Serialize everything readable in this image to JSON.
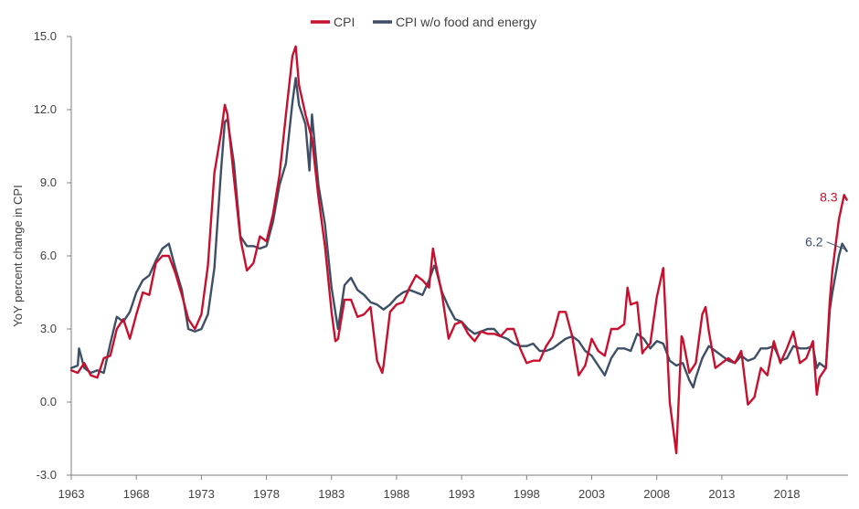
{
  "chart_data": {
    "type": "line",
    "title": "",
    "xlabel": "",
    "ylabel": "YoY percent change in CPI",
    "xlim": [
      1963,
      2022.7
    ],
    "ylim": [
      -3.0,
      15.0
    ],
    "x_ticks": [
      "1963",
      "1968",
      "1973",
      "1978",
      "1983",
      "1988",
      "1993",
      "1998",
      "2003",
      "2008",
      "2013",
      "2018"
    ],
    "y_ticks": [
      "-3.0",
      "0.0",
      "3.0",
      "6.0",
      "9.0",
      "12.0",
      "15.0"
    ],
    "grid": false,
    "legend_position": "top-center",
    "series": [
      {
        "name": "CPI",
        "color": "#c8102e",
        "end_label": "8.3",
        "points": [
          [
            1963.0,
            1.3
          ],
          [
            1963.5,
            1.2
          ],
          [
            1964.0,
            1.6
          ],
          [
            1964.5,
            1.1
          ],
          [
            1965.0,
            1.0
          ],
          [
            1965.5,
            1.8
          ],
          [
            1966.0,
            1.9
          ],
          [
            1966.5,
            3.0
          ],
          [
            1967.0,
            3.4
          ],
          [
            1967.5,
            2.6
          ],
          [
            1968.0,
            3.6
          ],
          [
            1968.5,
            4.5
          ],
          [
            1969.0,
            4.4
          ],
          [
            1969.5,
            5.7
          ],
          [
            1970.0,
            6.0
          ],
          [
            1970.5,
            6.0
          ],
          [
            1971.0,
            5.3
          ],
          [
            1971.5,
            4.4
          ],
          [
            1972.0,
            3.4
          ],
          [
            1972.5,
            3.0
          ],
          [
            1973.0,
            3.6
          ],
          [
            1973.5,
            5.6
          ],
          [
            1974.0,
            9.4
          ],
          [
            1974.5,
            11.0
          ],
          [
            1974.8,
            12.2
          ],
          [
            1975.0,
            11.8
          ],
          [
            1975.5,
            9.2
          ],
          [
            1976.0,
            6.7
          ],
          [
            1976.5,
            5.4
          ],
          [
            1977.0,
            5.7
          ],
          [
            1977.5,
            6.8
          ],
          [
            1978.0,
            6.6
          ],
          [
            1978.5,
            7.7
          ],
          [
            1979.0,
            9.3
          ],
          [
            1979.5,
            11.8
          ],
          [
            1980.0,
            14.2
          ],
          [
            1980.25,
            14.6
          ],
          [
            1980.5,
            13.0
          ],
          [
            1981.0,
            11.8
          ],
          [
            1981.5,
            10.8
          ],
          [
            1982.0,
            8.4
          ],
          [
            1982.5,
            6.4
          ],
          [
            1983.0,
            3.7
          ],
          [
            1983.3,
            2.5
          ],
          [
            1983.5,
            2.6
          ],
          [
            1984.0,
            4.2
          ],
          [
            1984.5,
            4.2
          ],
          [
            1985.0,
            3.5
          ],
          [
            1985.5,
            3.6
          ],
          [
            1986.0,
            3.9
          ],
          [
            1986.5,
            1.7
          ],
          [
            1986.9,
            1.2
          ],
          [
            1987.0,
            1.5
          ],
          [
            1987.5,
            3.7
          ],
          [
            1988.0,
            4.0
          ],
          [
            1988.5,
            4.1
          ],
          [
            1989.0,
            4.7
          ],
          [
            1989.5,
            5.2
          ],
          [
            1990.0,
            5.0
          ],
          [
            1990.5,
            4.7
          ],
          [
            1990.8,
            6.3
          ],
          [
            1991.0,
            5.7
          ],
          [
            1991.5,
            4.4
          ],
          [
            1992.0,
            2.6
          ],
          [
            1992.5,
            3.2
          ],
          [
            1993.0,
            3.3
          ],
          [
            1993.5,
            2.8
          ],
          [
            1994.0,
            2.5
          ],
          [
            1994.5,
            2.9
          ],
          [
            1995.0,
            2.8
          ],
          [
            1995.5,
            2.8
          ],
          [
            1996.0,
            2.7
          ],
          [
            1996.5,
            3.0
          ],
          [
            1997.0,
            3.0
          ],
          [
            1997.5,
            2.2
          ],
          [
            1998.0,
            1.6
          ],
          [
            1998.5,
            1.7
          ],
          [
            1999.0,
            1.7
          ],
          [
            1999.5,
            2.3
          ],
          [
            2000.0,
            2.7
          ],
          [
            2000.5,
            3.7
          ],
          [
            2001.0,
            3.7
          ],
          [
            2001.5,
            2.7
          ],
          [
            2002.0,
            1.1
          ],
          [
            2002.5,
            1.5
          ],
          [
            2003.0,
            2.6
          ],
          [
            2003.5,
            2.1
          ],
          [
            2004.0,
            1.9
          ],
          [
            2004.5,
            3.0
          ],
          [
            2005.0,
            3.0
          ],
          [
            2005.5,
            3.2
          ],
          [
            2005.75,
            4.7
          ],
          [
            2006.0,
            4.0
          ],
          [
            2006.5,
            4.1
          ],
          [
            2006.9,
            2.0
          ],
          [
            2007.0,
            2.1
          ],
          [
            2007.5,
            2.4
          ],
          [
            2008.0,
            4.3
          ],
          [
            2008.5,
            5.5
          ],
          [
            2008.9,
            1.1
          ],
          [
            2009.0,
            0.0
          ],
          [
            2009.5,
            -2.1
          ],
          [
            2009.9,
            2.7
          ],
          [
            2010.0,
            2.6
          ],
          [
            2010.5,
            1.2
          ],
          [
            2011.0,
            1.6
          ],
          [
            2011.5,
            3.6
          ],
          [
            2011.75,
            3.9
          ],
          [
            2012.0,
            2.9
          ],
          [
            2012.5,
            1.4
          ],
          [
            2013.0,
            1.6
          ],
          [
            2013.5,
            1.8
          ],
          [
            2014.0,
            1.6
          ],
          [
            2014.5,
            2.1
          ],
          [
            2015.0,
            -0.1
          ],
          [
            2015.5,
            0.2
          ],
          [
            2016.0,
            1.4
          ],
          [
            2016.5,
            1.1
          ],
          [
            2017.0,
            2.5
          ],
          [
            2017.5,
            1.6
          ],
          [
            2018.0,
            2.2
          ],
          [
            2018.5,
            2.9
          ],
          [
            2019.0,
            1.6
          ],
          [
            2019.5,
            1.8
          ],
          [
            2020.0,
            2.5
          ],
          [
            2020.3,
            0.3
          ],
          [
            2020.5,
            1.0
          ],
          [
            2021.0,
            1.4
          ],
          [
            2021.3,
            4.2
          ],
          [
            2021.5,
            5.4
          ],
          [
            2022.0,
            7.5
          ],
          [
            2022.4,
            8.5
          ],
          [
            2022.6,
            8.3
          ]
        ]
      },
      {
        "name": "CPI w/o food and energy",
        "color": "#3d4f66",
        "end_label": "6.2",
        "points": [
          [
            1963.0,
            1.4
          ],
          [
            1963.5,
            1.5
          ],
          [
            1963.6,
            2.2
          ],
          [
            1964.0,
            1.4
          ],
          [
            1964.5,
            1.2
          ],
          [
            1965.0,
            1.3
          ],
          [
            1965.5,
            1.2
          ],
          [
            1966.0,
            2.4
          ],
          [
            1966.5,
            3.5
          ],
          [
            1967.0,
            3.3
          ],
          [
            1967.5,
            3.7
          ],
          [
            1968.0,
            4.5
          ],
          [
            1968.5,
            5.0
          ],
          [
            1969.0,
            5.2
          ],
          [
            1969.5,
            5.8
          ],
          [
            1970.0,
            6.3
          ],
          [
            1970.5,
            6.5
          ],
          [
            1971.0,
            5.5
          ],
          [
            1971.5,
            4.6
          ],
          [
            1972.0,
            3.0
          ],
          [
            1972.5,
            2.9
          ],
          [
            1973.0,
            3.0
          ],
          [
            1973.5,
            3.6
          ],
          [
            1974.0,
            5.5
          ],
          [
            1974.5,
            9.4
          ],
          [
            1974.8,
            11.5
          ],
          [
            1975.0,
            11.6
          ],
          [
            1975.5,
            9.8
          ],
          [
            1976.0,
            6.8
          ],
          [
            1976.5,
            6.4
          ],
          [
            1977.0,
            6.4
          ],
          [
            1977.5,
            6.3
          ],
          [
            1978.0,
            6.4
          ],
          [
            1978.5,
            7.4
          ],
          [
            1979.0,
            8.9
          ],
          [
            1979.5,
            9.8
          ],
          [
            1980.0,
            12.3
          ],
          [
            1980.25,
            13.3
          ],
          [
            1980.5,
            12.2
          ],
          [
            1981.0,
            11.4
          ],
          [
            1981.3,
            9.5
          ],
          [
            1981.5,
            11.8
          ],
          [
            1982.0,
            8.9
          ],
          [
            1982.5,
            7.3
          ],
          [
            1983.0,
            4.7
          ],
          [
            1983.5,
            3.0
          ],
          [
            1984.0,
            4.8
          ],
          [
            1984.5,
            5.1
          ],
          [
            1985.0,
            4.6
          ],
          [
            1985.5,
            4.4
          ],
          [
            1986.0,
            4.1
          ],
          [
            1986.5,
            4.0
          ],
          [
            1987.0,
            3.8
          ],
          [
            1987.5,
            4.0
          ],
          [
            1988.0,
            4.3
          ],
          [
            1988.5,
            4.5
          ],
          [
            1989.0,
            4.6
          ],
          [
            1989.5,
            4.5
          ],
          [
            1990.0,
            4.4
          ],
          [
            1990.5,
            5.0
          ],
          [
            1990.9,
            5.6
          ],
          [
            1991.0,
            5.5
          ],
          [
            1991.5,
            4.5
          ],
          [
            1992.0,
            3.9
          ],
          [
            1992.5,
            3.4
          ],
          [
            1993.0,
            3.3
          ],
          [
            1993.5,
            3.0
          ],
          [
            1994.0,
            2.8
          ],
          [
            1994.5,
            2.9
          ],
          [
            1995.0,
            3.0
          ],
          [
            1995.5,
            3.0
          ],
          [
            1996.0,
            2.7
          ],
          [
            1996.5,
            2.6
          ],
          [
            1997.0,
            2.4
          ],
          [
            1997.5,
            2.3
          ],
          [
            1998.0,
            2.3
          ],
          [
            1998.5,
            2.4
          ],
          [
            1999.0,
            2.1
          ],
          [
            1999.5,
            2.1
          ],
          [
            2000.0,
            2.2
          ],
          [
            2000.5,
            2.4
          ],
          [
            2001.0,
            2.6
          ],
          [
            2001.5,
            2.7
          ],
          [
            2002.0,
            2.5
          ],
          [
            2002.5,
            2.1
          ],
          [
            2003.0,
            1.9
          ],
          [
            2003.5,
            1.5
          ],
          [
            2004.0,
            1.1
          ],
          [
            2004.5,
            1.8
          ],
          [
            2005.0,
            2.2
          ],
          [
            2005.5,
            2.2
          ],
          [
            2006.0,
            2.1
          ],
          [
            2006.5,
            2.8
          ],
          [
            2007.0,
            2.6
          ],
          [
            2007.5,
            2.2
          ],
          [
            2008.0,
            2.5
          ],
          [
            2008.5,
            2.4
          ],
          [
            2009.0,
            1.7
          ],
          [
            2009.5,
            1.5
          ],
          [
            2010.0,
            1.6
          ],
          [
            2010.5,
            0.9
          ],
          [
            2010.8,
            0.6
          ],
          [
            2011.0,
            1.0
          ],
          [
            2011.5,
            1.8
          ],
          [
            2012.0,
            2.3
          ],
          [
            2012.5,
            2.1
          ],
          [
            2013.0,
            1.9
          ],
          [
            2013.5,
            1.7
          ],
          [
            2014.0,
            1.6
          ],
          [
            2014.5,
            1.9
          ],
          [
            2015.0,
            1.7
          ],
          [
            2015.5,
            1.8
          ],
          [
            2016.0,
            2.2
          ],
          [
            2016.5,
            2.2
          ],
          [
            2017.0,
            2.3
          ],
          [
            2017.5,
            1.7
          ],
          [
            2018.0,
            1.8
          ],
          [
            2018.5,
            2.3
          ],
          [
            2019.0,
            2.2
          ],
          [
            2019.5,
            2.2
          ],
          [
            2020.0,
            2.3
          ],
          [
            2020.3,
            1.4
          ],
          [
            2020.5,
            1.6
          ],
          [
            2021.0,
            1.4
          ],
          [
            2021.3,
            3.8
          ],
          [
            2021.5,
            4.5
          ],
          [
            2022.0,
            6.0
          ],
          [
            2022.25,
            6.5
          ],
          [
            2022.6,
            6.2
          ]
        ]
      }
    ]
  }
}
